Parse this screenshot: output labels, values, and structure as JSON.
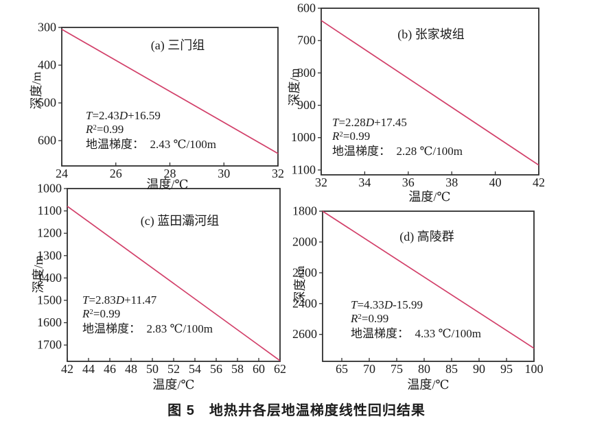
{
  "caption": "图 5　地热井各层地温梯度线性回归结果",
  "colors": {
    "line": "#d23f69",
    "axis": "#2e2e2e",
    "text": "#1b1b1b"
  },
  "chart_data": [
    {
      "type": "line",
      "panel": "a",
      "title": "(a) 三门组",
      "xlabel": "温度/℃",
      "ylabel": "深度/m",
      "xlim": [
        24,
        32
      ],
      "ylim": [
        300,
        667
      ],
      "y_inverted": true,
      "grid": false,
      "xticks": [
        24,
        26,
        28,
        30,
        32
      ],
      "yticks": [
        300,
        400,
        500,
        600
      ],
      "series": [
        {
          "name": "regression-line",
          "x": [
            24,
            32
          ],
          "y": [
            305,
            634
          ]
        }
      ],
      "equation": "T=2.43D+16.59",
      "r_squared": "R²=0.99",
      "gradient_label": "地温梯度：  2.43 ℃/100m",
      "annotation_lines": [
        [
          {
            "t": "T",
            "i": 1
          },
          {
            "t": "=2.43"
          },
          {
            "t": "D",
            "i": 1
          },
          {
            "t": "+16.59"
          }
        ],
        [
          {
            "t": "R",
            "i": 1
          },
          {
            "t": "2",
            "sup": 1
          },
          {
            "t": "=0.99"
          }
        ],
        [
          {
            "t": "地温梯度：  2.43 ℃/100m"
          }
        ]
      ]
    },
    {
      "type": "line",
      "panel": "b",
      "title": "(b) 张家坡组",
      "xlabel": "温度/℃",
      "ylabel": "深度/m",
      "xlim": [
        32,
        42
      ],
      "ylim": [
        600,
        1115
      ],
      "y_inverted": true,
      "grid": false,
      "xticks": [
        32,
        34,
        36,
        38,
        40,
        42
      ],
      "yticks": [
        600,
        700,
        800,
        900,
        1000,
        1100
      ],
      "series": [
        {
          "name": "regression-line",
          "x": [
            32,
            42
          ],
          "y": [
            638,
            1085
          ]
        }
      ],
      "equation": "T=2.28D+17.45",
      "r_squared": "R²=0.99",
      "gradient_label": "地温梯度：  2.28 ℃/100m",
      "annotation_lines": [
        [
          {
            "t": "T",
            "i": 1
          },
          {
            "t": "=2.28"
          },
          {
            "t": "D",
            "i": 1
          },
          {
            "t": "+17.45"
          }
        ],
        [
          {
            "t": "R",
            "i": 1
          },
          {
            "t": "2",
            "sup": 1
          },
          {
            "t": "=0.99"
          }
        ],
        [
          {
            "t": "地温梯度：  2.28 ℃/100m"
          }
        ]
      ]
    },
    {
      "type": "line",
      "panel": "c",
      "title": "(c) 蓝田灞河组",
      "xlabel": "温度/℃",
      "ylabel": "深度/m",
      "xlim": [
        42,
        62
      ],
      "ylim": [
        1000,
        1773
      ],
      "y_inverted": true,
      "grid": false,
      "xticks": [
        42,
        44,
        46,
        48,
        50,
        52,
        54,
        56,
        58,
        60,
        62
      ],
      "yticks": [
        1000,
        1100,
        1200,
        1300,
        1400,
        1500,
        1600,
        1700
      ],
      "series": [
        {
          "name": "regression-line",
          "x": [
            42,
            62
          ],
          "y": [
            1079,
            1770
          ]
        }
      ],
      "equation": "T=2.83D+11.47",
      "r_squared": "R²=0.99",
      "gradient_label": "地温梯度：  2.83 ℃/100m",
      "annotation_lines": [
        [
          {
            "t": "T",
            "i": 1
          },
          {
            "t": "=2.83"
          },
          {
            "t": "D",
            "i": 1
          },
          {
            "t": "+11.47"
          }
        ],
        [
          {
            "t": "R",
            "i": 1
          },
          {
            "t": "2",
            "sup": 1
          },
          {
            "t": "=0.99"
          }
        ],
        [
          {
            "t": "地温梯度：  2.83 ℃/100m"
          }
        ]
      ]
    },
    {
      "type": "line",
      "panel": "d",
      "title": "(d) 高陵群",
      "xlabel": "温度/℃",
      "ylabel": "深度/m",
      "xlim": [
        61.5,
        100
      ],
      "ylim": [
        1800,
        2775
      ],
      "y_inverted": true,
      "grid": false,
      "xticks": [
        65,
        70,
        75,
        80,
        85,
        90,
        95,
        100
      ],
      "yticks": [
        1800,
        2000,
        2200,
        2400,
        2600
      ],
      "series": [
        {
          "name": "regression-line",
          "x": [
            61.5,
            100
          ],
          "y": [
            1800,
            2690
          ]
        }
      ],
      "equation": "T=4.33D-15.99",
      "r_squared": "R²=0.99",
      "gradient_label": "地温梯度：  4.33 ℃/100m",
      "annotation_lines": [
        [
          {
            "t": "T",
            "i": 1
          },
          {
            "t": "=4.33"
          },
          {
            "t": "D",
            "i": 1
          },
          {
            "t": "-15.99"
          }
        ],
        [
          {
            "t": "R",
            "i": 1
          },
          {
            "t": "2",
            "sup": 1
          },
          {
            "t": "=0.99"
          }
        ],
        [
          {
            "t": "地温梯度：  4.33 ℃/100m"
          }
        ]
      ]
    }
  ]
}
